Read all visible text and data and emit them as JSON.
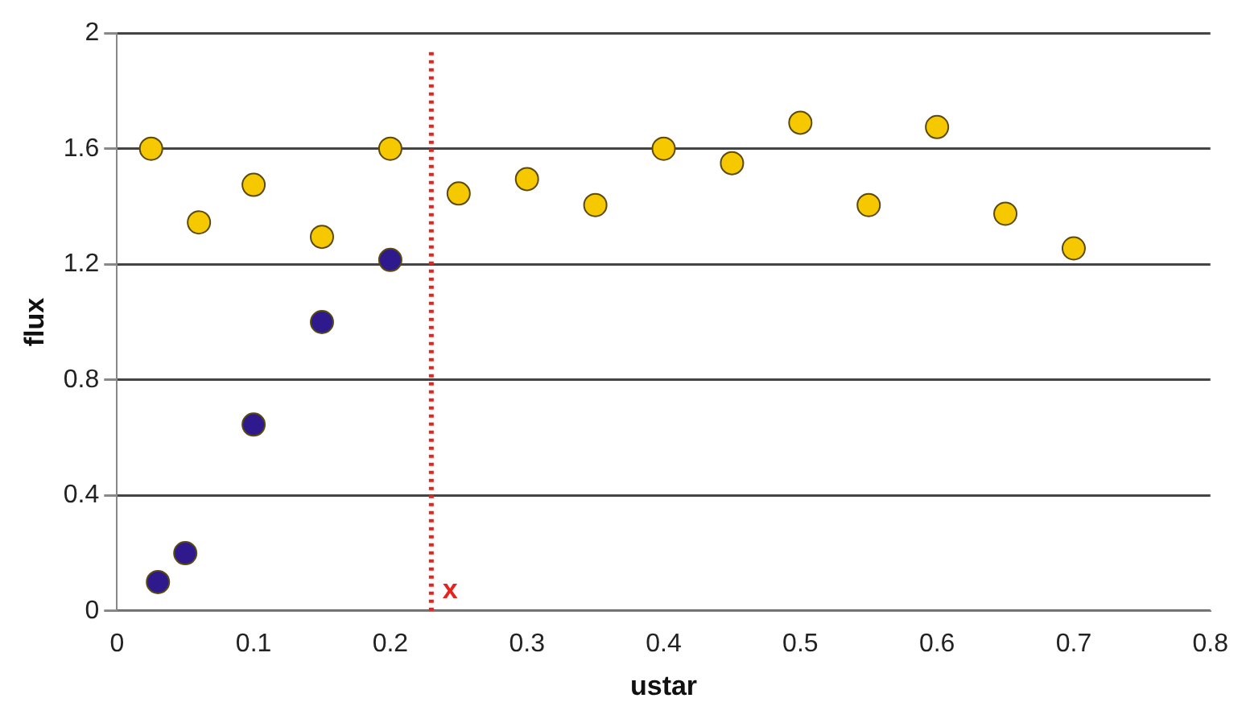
{
  "chart_data": {
    "type": "scatter",
    "xlabel": "ustar",
    "ylabel": "flux",
    "xlim": [
      0,
      0.8
    ],
    "xticks": [
      0,
      0.1,
      0.2,
      0.3,
      0.4,
      0.5,
      0.6,
      0.7,
      0.8
    ],
    "ylim": [
      0,
      2
    ],
    "yticks": [
      0,
      0.4,
      0.8,
      1.2,
      1.6,
      2
    ],
    "grid": "y",
    "legend": false,
    "marker": "circle",
    "series": [
      {
        "color": "#f5c800",
        "x": [
          0.025,
          0.06,
          0.1,
          0.15,
          0.2,
          0.25,
          0.3,
          0.35,
          0.4,
          0.45,
          0.5,
          0.55,
          0.6,
          0.65,
          0.7
        ],
        "values": [
          1.6,
          1.345,
          1.475,
          1.295,
          1.6,
          1.445,
          1.495,
          1.405,
          1.6,
          1.55,
          1.69,
          1.405,
          1.675,
          1.375,
          1.255
        ]
      },
      {
        "color": "#2e1a8c",
        "x": [
          0.03,
          0.05,
          0.1,
          0.15,
          0.2
        ],
        "values": [
          0.1,
          0.2,
          0.645,
          1.0,
          1.215
        ]
      }
    ],
    "ref_lines": [
      {
        "axis": "x",
        "value": 0.23,
        "label": "x",
        "color": "#e8231e",
        "line_style": "dotted"
      }
    ]
  }
}
